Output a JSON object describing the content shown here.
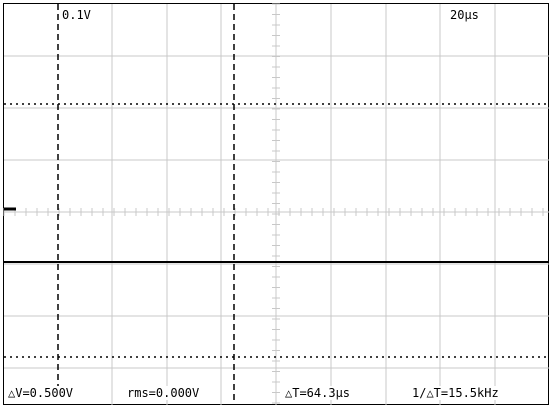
{
  "header": {
    "volts_per_div": "0.1V",
    "time_per_div": "20μs"
  },
  "readouts": {
    "delta_v": "△V=0.500V",
    "rms": "rms=0.000V",
    "delta_t": "△T=64.3μs",
    "inverse_delta_t": "1/△T=15.5kHz"
  },
  "colors": {
    "background": "#ffffff",
    "grid": "#c8c8c8",
    "trace": "#000000",
    "cursor": "#000000"
  },
  "waveform": {
    "level": "flat"
  }
}
